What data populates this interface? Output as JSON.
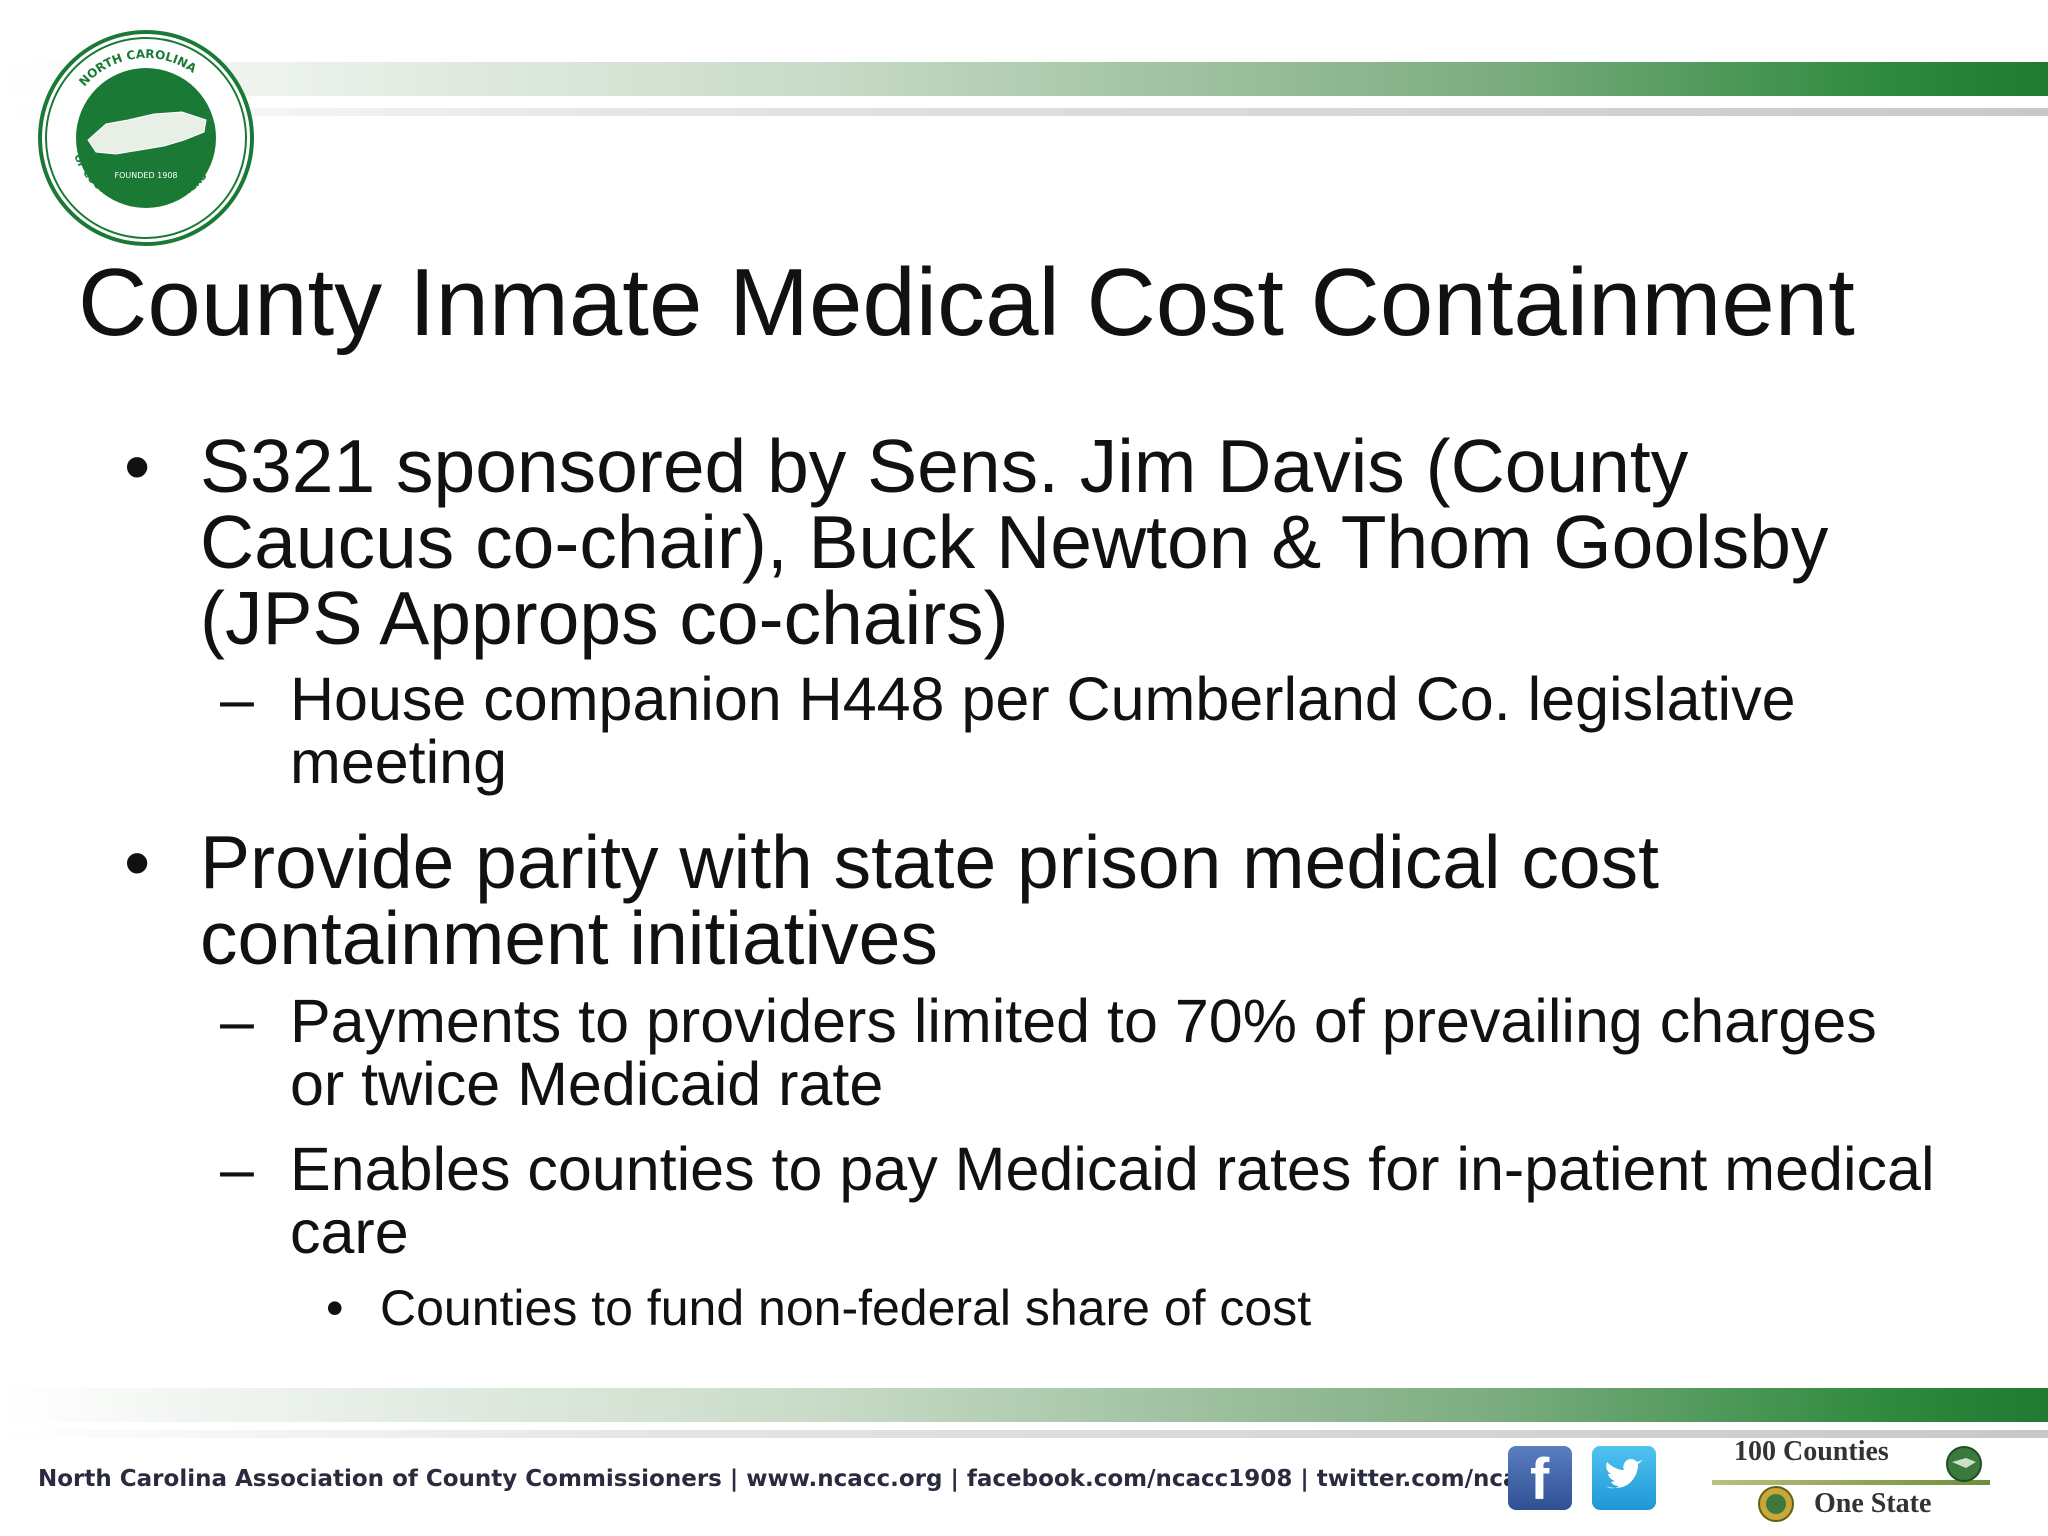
{
  "logo": {
    "ring_text_top": "NORTH CAROLINA",
    "ring_text_left": "ASSOCIATION",
    "ring_text_bottom": "OF COUNTY COMMISSIONERS",
    "inner_text": "FOUNDED 1908",
    "ring_color": "#ffffff",
    "disc_color": "#1a7a35"
  },
  "slide": {
    "title": "County Inmate Medical Cost Containment",
    "bullets": [
      {
        "level": 1,
        "marker": "•",
        "text": "S321 sponsored by Sens. Jim Davis (County Caucus co-chair), Buck Newton & Thom Goolsby (JPS Approps co-chairs)"
      },
      {
        "level": 2,
        "marker": "–",
        "text": "House companion H448 per Cumberland Co. legislative meeting"
      },
      {
        "level": 1,
        "marker": "•",
        "text": "Provide parity with state prison medical cost containment initiatives"
      },
      {
        "level": 2,
        "marker": "–",
        "text": "Payments to providers limited to 70% of prevailing charges or twice Medicaid rate"
      },
      {
        "level": 2,
        "marker": "–",
        "text": "Enables counties to pay Medicaid rates for in-patient medical care"
      },
      {
        "level": 3,
        "marker": "•",
        "text": "Counties to fund non-federal share of cost"
      }
    ]
  },
  "footer": {
    "text": "North Carolina Association of County Commissioners | www.ncacc.org | facebook.com/ncacc1908 | twitter.com/ncacc",
    "facebook_icon": "facebook-icon",
    "twitter_icon": "twitter-icon",
    "badge_top": "100 Counties",
    "badge_bottom": "One State"
  },
  "colors": {
    "brand_green": "#1f7a32",
    "text": "#111111"
  }
}
